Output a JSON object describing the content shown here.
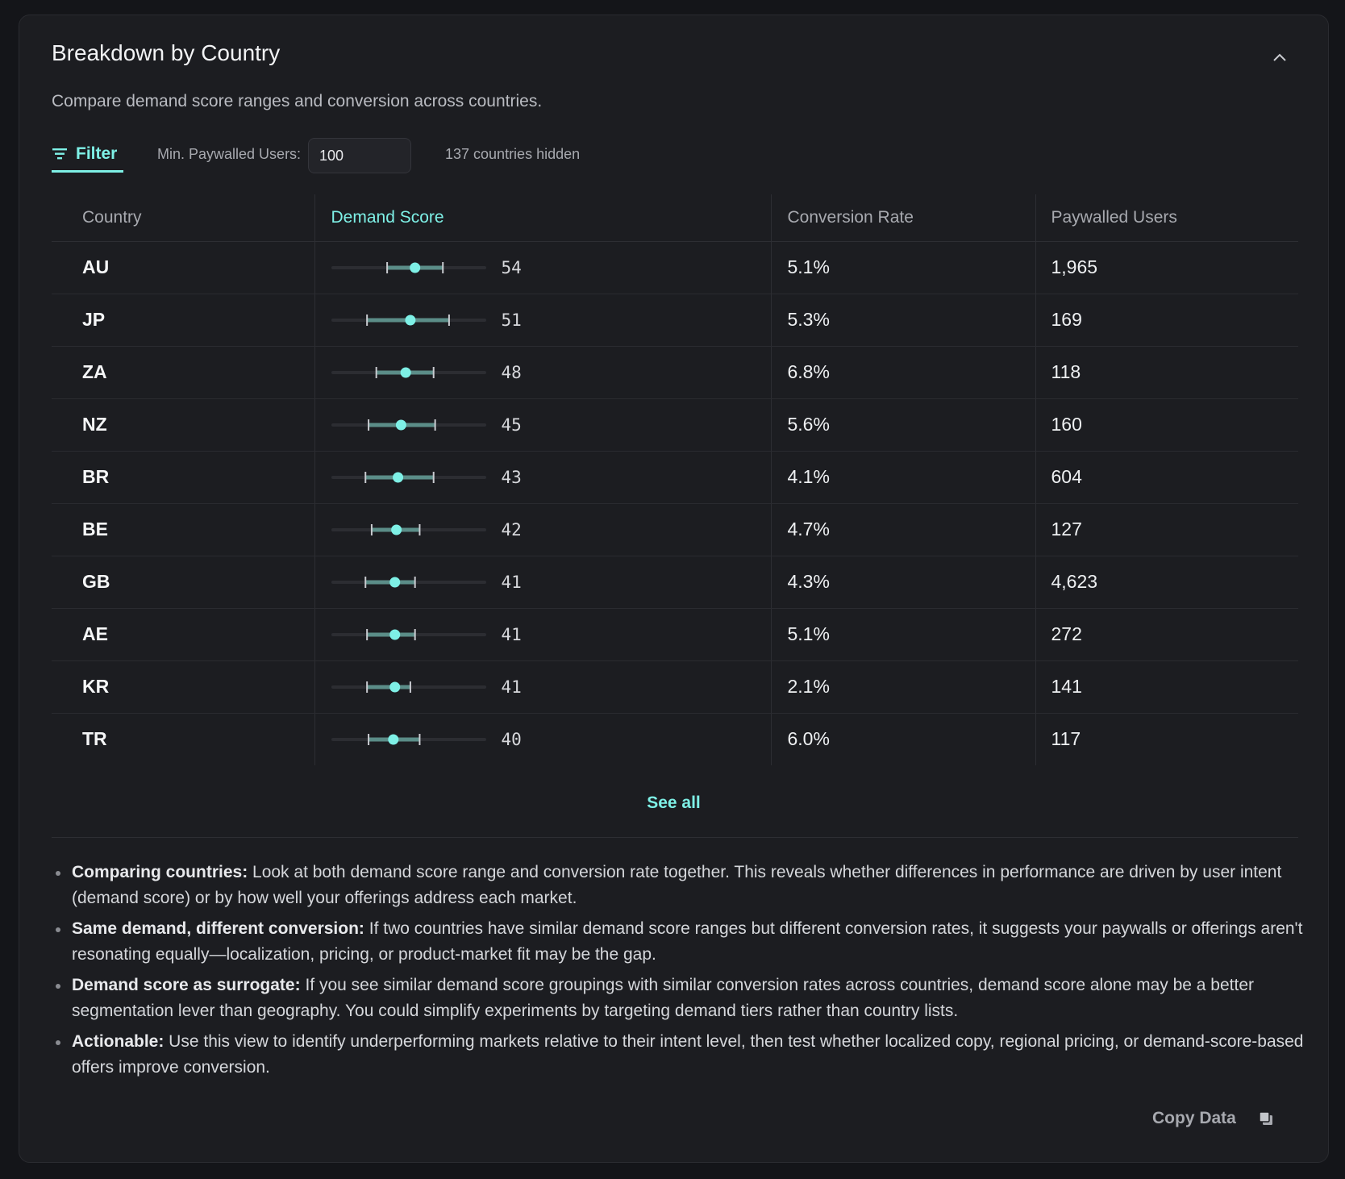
{
  "header": {
    "title": "Breakdown by Country",
    "subtitle": "Compare demand score ranges and conversion across countries.",
    "collapse_icon": "chevron-up-icon"
  },
  "filter": {
    "label": "Filter",
    "icon": "filter-icon",
    "min_label": "Min. Paywalled Users:",
    "min_value": "100",
    "hidden_text": "137 countries hidden"
  },
  "table": {
    "columns": [
      "Country",
      "Demand Score",
      "Conversion Rate",
      "Paywalled Users"
    ],
    "active_column": "Demand Score",
    "demand_scale": [
      0,
      100
    ],
    "rows": [
      {
        "country": "AU",
        "score": "54",
        "low": 36,
        "high": 72,
        "conversion": "5.1%",
        "users": "1,965"
      },
      {
        "country": "JP",
        "score": "51",
        "low": 23,
        "high": 76,
        "conversion": "5.3%",
        "users": "169"
      },
      {
        "country": "ZA",
        "score": "48",
        "low": 29,
        "high": 66,
        "conversion": "6.8%",
        "users": "118"
      },
      {
        "country": "NZ",
        "score": "45",
        "low": 24,
        "high": 67,
        "conversion": "5.6%",
        "users": "160"
      },
      {
        "country": "BR",
        "score": "43",
        "low": 22,
        "high": 66,
        "conversion": "4.1%",
        "users": "604"
      },
      {
        "country": "BE",
        "score": "42",
        "low": 26,
        "high": 57,
        "conversion": "4.7%",
        "users": "127"
      },
      {
        "country": "GB",
        "score": "41",
        "low": 22,
        "high": 54,
        "conversion": "4.3%",
        "users": "4,623"
      },
      {
        "country": "AE",
        "score": "41",
        "low": 23,
        "high": 54,
        "conversion": "5.1%",
        "users": "272"
      },
      {
        "country": "KR",
        "score": "41",
        "low": 23,
        "high": 51,
        "conversion": "2.1%",
        "users": "141"
      },
      {
        "country": "TR",
        "score": "40",
        "low": 24,
        "high": 57,
        "conversion": "6.0%",
        "users": "117"
      }
    ],
    "see_all": "See all"
  },
  "notes": [
    {
      "bold": "Comparing countries:",
      "text": " Look at both demand score range and conversion rate together. This reveals whether differences in performance are driven by user intent (demand score) or by how well your offerings address each market."
    },
    {
      "bold": "Same demand, different conversion:",
      "text": " If two countries have similar demand score ranges but different conversion rates, it suggests your paywalls or offerings aren't resonating equally—localization, pricing, or product-market fit may be the gap."
    },
    {
      "bold": "Demand score as surrogate:",
      "text": " If you see similar demand score groupings with similar conversion rates across countries, demand score alone may be a better segmentation lever than geography. You could simplify experiments by targeting demand tiers rather than country lists."
    },
    {
      "bold": "Actionable:",
      "text": " Use this view to identify underperforming markets relative to their intent level, then test whether localized copy, regional pricing, or demand-score-based offers improve conversion."
    }
  ],
  "footer": {
    "copy_label": "Copy Data",
    "copy_icon": "copy-icon"
  },
  "colors": {
    "accent": "#7ef0e6",
    "range_bar": "#5b8d88",
    "track": "#2c2d32",
    "background": "#1c1d21"
  }
}
